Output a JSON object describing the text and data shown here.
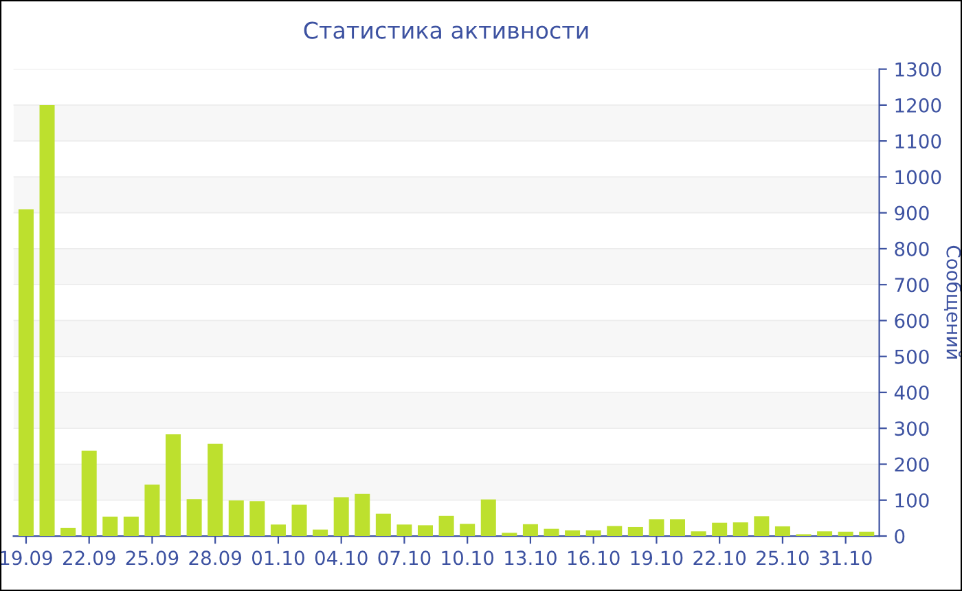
{
  "chart_data": {
    "type": "bar",
    "title": "Статистика активности",
    "ylabel": "Сообщений",
    "categories": [
      "19.09",
      null,
      null,
      "22.09",
      null,
      null,
      "25.09",
      null,
      null,
      "28.09",
      null,
      null,
      "01.10",
      null,
      null,
      "04.10",
      null,
      null,
      "07.10",
      null,
      null,
      "10.10",
      null,
      null,
      "13.10",
      null,
      null,
      "16.10",
      null,
      null,
      "19.10",
      null,
      null,
      "22.10",
      null,
      null,
      "25.10",
      null,
      null,
      "31.10",
      null
    ],
    "values": [
      910,
      1200,
      23,
      238,
      54,
      54,
      143,
      283,
      103,
      257,
      99,
      97,
      32,
      87,
      18,
      108,
      117,
      62,
      32,
      30,
      56,
      34,
      102,
      9,
      33,
      20,
      16,
      16,
      28,
      25,
      47,
      47,
      13,
      37,
      38,
      55,
      27,
      5,
      13,
      12,
      12
    ],
    "color": "#bde02e",
    "ylim": [
      0,
      1300
    ],
    "yticks": [
      0,
      100,
      200,
      300,
      400,
      500,
      600,
      700,
      800,
      900,
      1000,
      1100,
      1200,
      1300
    ],
    "grid": "y"
  }
}
